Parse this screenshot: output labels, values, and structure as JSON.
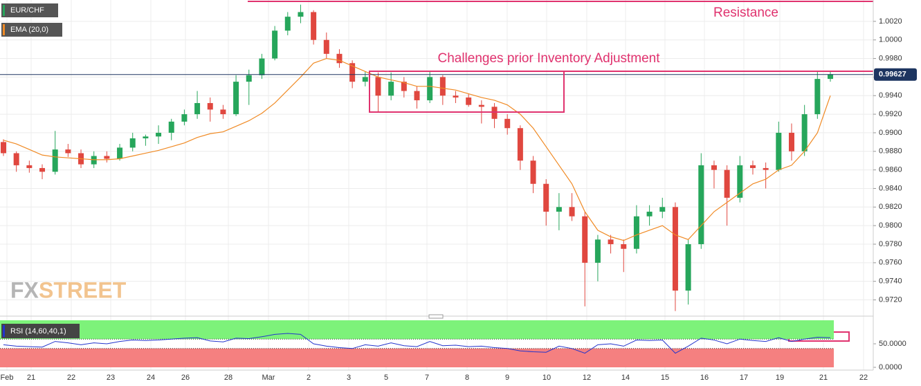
{
  "chart_data": {
    "type": "candlestick",
    "symbol": "EUR/CHF",
    "indicator": "EMA (20,0)",
    "rsi_label": "RSI (14,60,40,1)",
    "annotations": [
      "Resistance",
      "Challenges prior Inventory Adjustment"
    ],
    "logo_left": "FX",
    "logo_right": "STREET",
    "last_price": 0.99627,
    "up_color": "#26a65b",
    "down_color": "#e0473f",
    "ema_color": "#f08a24",
    "rsi_color": "#2233cc",
    "ylim": [
      0.9704,
      1.0043
    ],
    "yticks": [
      {
        "value": 1.002,
        "label": "1.0020"
      },
      {
        "value": 1.0,
        "label": "1.0000"
      },
      {
        "value": 0.998,
        "label": "0.9980"
      },
      {
        "value": 0.996,
        "label": "0.9960"
      },
      {
        "value": 0.994,
        "label": "0.9940"
      },
      {
        "value": 0.992,
        "label": "0.9920"
      },
      {
        "value": 0.99,
        "label": "0.9900"
      },
      {
        "value": 0.988,
        "label": "0.9880"
      },
      {
        "value": 0.986,
        "label": "0.9860"
      },
      {
        "value": 0.984,
        "label": "0.9840"
      },
      {
        "value": 0.982,
        "label": "0.9820"
      },
      {
        "value": 0.98,
        "label": "0.9800"
      },
      {
        "value": 0.978,
        "label": "0.9780"
      },
      {
        "value": 0.976,
        "label": "0.9760"
      },
      {
        "value": 0.974,
        "label": "0.9740"
      },
      {
        "value": 0.972,
        "label": "0.9720"
      }
    ],
    "date_labels": [
      "Feb",
      "21",
      "22",
      "23",
      "24",
      "26",
      "28",
      "Mar",
      "2",
      "3",
      "5",
      "7",
      "8",
      "9",
      "10",
      "12",
      "14",
      "15",
      "16",
      "17",
      "19",
      "21",
      "22"
    ],
    "open": [
      0.989,
      0.9878,
      0.9865,
      0.9862,
      0.9858,
      0.9882,
      0.9878,
      0.9866,
      0.9875,
      0.9872,
      0.9884,
      0.9894,
      0.9896,
      0.99,
      0.9912,
      0.992,
      0.9932,
      0.9925,
      0.992,
      0.9955,
      0.9962,
      0.998,
      1.001,
      1.0025,
      1.003,
      1.0,
      0.9985,
      0.9975,
      0.9955,
      0.996,
      0.994,
      0.9955,
      0.9945,
      0.9935,
      0.996,
      0.994,
      0.9938,
      0.993,
      0.9928,
      0.9915,
      0.9905,
      0.987,
      0.9845,
      0.9815,
      0.982,
      0.981,
      0.976,
      0.9785,
      0.978,
      0.9775,
      0.981,
      0.9815,
      0.982,
      0.973,
      0.978,
      0.9865,
      0.986,
      0.983,
      0.9865,
      0.9862,
      0.986,
      0.99,
      0.988,
      0.992,
      0.9958
    ],
    "high": [
      0.9893,
      0.988,
      0.987,
      0.9866,
      0.9902,
      0.9888,
      0.9882,
      0.988,
      0.988,
      0.9888,
      0.99,
      0.9898,
      0.9908,
      0.9915,
      0.9925,
      0.9945,
      0.9938,
      0.993,
      0.9962,
      0.9968,
      0.9985,
      1.0015,
      1.003,
      1.0038,
      1.0032,
      1.0008,
      0.999,
      0.9978,
      0.9966,
      0.9965,
      0.9965,
      0.996,
      0.995,
      0.9966,
      0.9962,
      0.9945,
      0.9942,
      0.9935,
      0.9932,
      0.992,
      0.9908,
      0.9875,
      0.985,
      0.9835,
      0.9835,
      0.9815,
      0.979,
      0.979,
      0.9785,
      0.9822,
      0.9822,
      0.983,
      0.9825,
      0.9785,
      0.9878,
      0.987,
      0.9865,
      0.9875,
      0.987,
      0.9868,
      0.9912,
      0.991,
      0.993,
      0.9966,
      0.9966
    ],
    "low": [
      0.9875,
      0.9858,
      0.9857,
      0.985,
      0.9855,
      0.9874,
      0.9862,
      0.9862,
      0.9868,
      0.987,
      0.988,
      0.9886,
      0.9888,
      0.9892,
      0.9908,
      0.9915,
      0.9912,
      0.9915,
      0.9918,
      0.993,
      0.9958,
      0.9978,
      1.0005,
      1.0018,
      0.9995,
      0.998,
      0.997,
      0.9948,
      0.995,
      0.9922,
      0.9935,
      0.9938,
      0.9926,
      0.9932,
      0.993,
      0.9932,
      0.9928,
      0.991,
      0.9905,
      0.9898,
      0.986,
      0.9835,
      0.98,
      0.9795,
      0.9805,
      0.9713,
      0.974,
      0.977,
      0.975,
      0.977,
      0.98,
      0.9808,
      0.9708,
      0.9715,
      0.9775,
      0.984,
      0.98,
      0.9825,
      0.9855,
      0.984,
      0.9858,
      0.987,
      0.9875,
      0.9915,
      0.9955
    ],
    "close": [
      0.9878,
      0.9865,
      0.9862,
      0.9858,
      0.9882,
      0.9878,
      0.9866,
      0.9875,
      0.9872,
      0.9884,
      0.9894,
      0.9896,
      0.99,
      0.9912,
      0.992,
      0.9932,
      0.9925,
      0.992,
      0.9955,
      0.9962,
      0.998,
      1.001,
      1.0025,
      1.003,
      1.0,
      0.9985,
      0.9975,
      0.9955,
      0.996,
      0.994,
      0.9955,
      0.9945,
      0.9935,
      0.996,
      0.994,
      0.9938,
      0.993,
      0.9928,
      0.9915,
      0.9905,
      0.987,
      0.9845,
      0.9815,
      0.982,
      0.981,
      0.976,
      0.9785,
      0.978,
      0.9775,
      0.981,
      0.9815,
      0.982,
      0.973,
      0.978,
      0.9865,
      0.986,
      0.983,
      0.9865,
      0.9862,
      0.986,
      0.99,
      0.988,
      0.992,
      0.9958,
      0.9963
    ],
    "ema": [
      0.9892,
      0.9888,
      0.9882,
      0.9876,
      0.9874,
      0.9873,
      0.9872,
      0.9871,
      0.9871,
      0.9872,
      0.9875,
      0.9878,
      0.9881,
      0.9885,
      0.9889,
      0.9895,
      0.9899,
      0.9901,
      0.9907,
      0.9913,
      0.9921,
      0.9932,
      0.9946,
      0.996,
      0.9975,
      0.998,
      0.9978,
      0.9972,
      0.9966,
      0.996,
      0.9957,
      0.9954,
      0.995,
      0.995,
      0.9948,
      0.9946,
      0.9942,
      0.9938,
      0.9935,
      0.993,
      0.992,
      0.9905,
      0.9885,
      0.9865,
      0.9845,
      0.9815,
      0.9795,
      0.9788,
      0.9784,
      0.979,
      0.9795,
      0.98,
      0.979,
      0.9785,
      0.98,
      0.9815,
      0.9825,
      0.9835,
      0.9845,
      0.985,
      0.986,
      0.9865,
      0.988,
      0.99,
      0.994
    ],
    "rsi": [
      48,
      45,
      44,
      43,
      55,
      52,
      48,
      52,
      50,
      55,
      58,
      57,
      58,
      60,
      62,
      63,
      56,
      54,
      62,
      61,
      65,
      70,
      72,
      70,
      50,
      45,
      42,
      40,
      48,
      45,
      52,
      46,
      44,
      55,
      46,
      47,
      44,
      45,
      42,
      40,
      35,
      33,
      32,
      45,
      40,
      30,
      48,
      50,
      45,
      58,
      57,
      58,
      30,
      45,
      62,
      58,
      50,
      60,
      57,
      55,
      63,
      55,
      60,
      64,
      63
    ],
    "rsi_ylim": [
      0,
      100
    ],
    "rsi_yticks": [
      {
        "value": 50,
        "label": "50.0000"
      },
      {
        "value": 0,
        "label": "0.0000"
      }
    ],
    "rsi_bands": [
      40,
      60
    ]
  }
}
